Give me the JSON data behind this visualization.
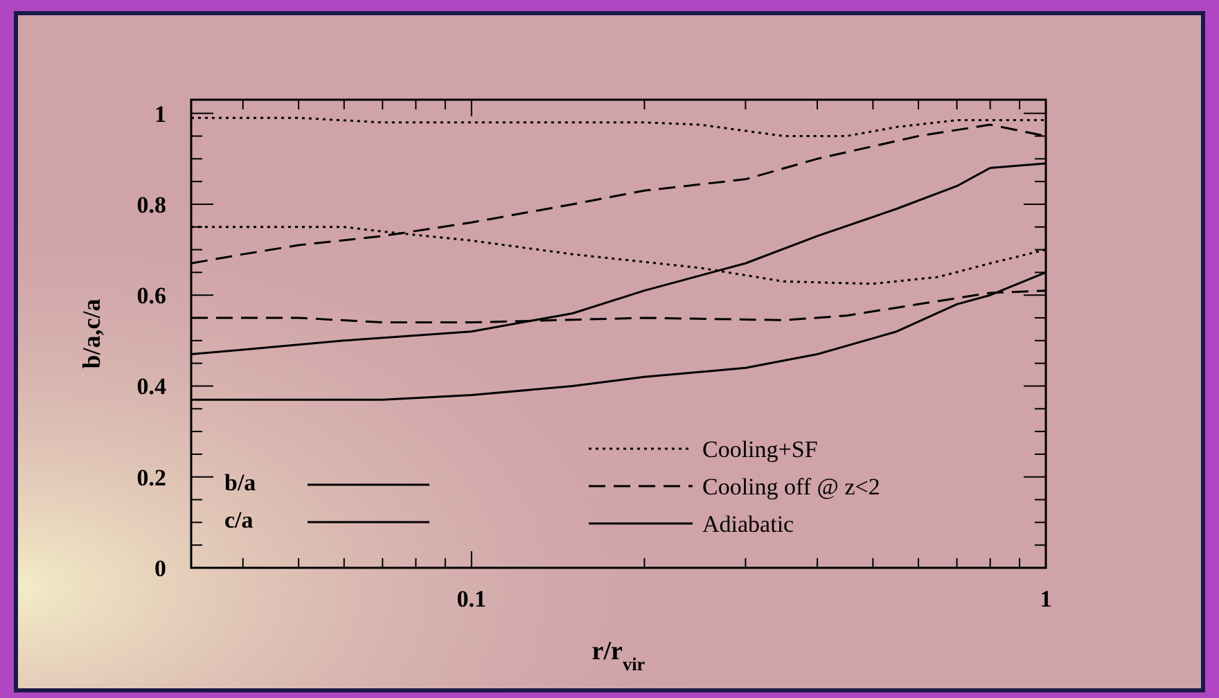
{
  "chart_data": {
    "type": "line",
    "xlabel": "r/r$_{vir}$",
    "ylabel": "b/a,c/a",
    "log": "x",
    "xlim": [
      0.0325,
      1
    ],
    "ylim": [
      0,
      1.03
    ],
    "xticks": [
      {
        "value": 0.04,
        "label": null
      },
      {
        "value": 0.05,
        "label": null
      },
      {
        "value": 0.06,
        "label": null
      },
      {
        "value": 0.07,
        "label": null
      },
      {
        "value": 0.08,
        "label": null
      },
      {
        "value": 0.09,
        "label": null
      },
      0.1,
      {
        "value": 0.2,
        "label": null
      },
      {
        "value": 0.3,
        "label": null
      },
      {
        "value": 0.4,
        "label": null
      },
      {
        "value": 0.5,
        "label": null
      },
      {
        "value": 0.6,
        "label": null
      },
      {
        "value": 0.7,
        "label": null
      },
      {
        "value": 0.8,
        "label": null
      },
      {
        "value": 0.9,
        "label": null
      },
      1
    ],
    "yticks": [
      0,
      {
        "value": 0.05,
        "label": null
      },
      {
        "value": 0.1,
        "label": null
      },
      {
        "value": 0.15,
        "label": null
      },
      0.2,
      {
        "value": 0.25,
        "label": null
      },
      {
        "value": 0.3,
        "label": null
      },
      {
        "value": 0.35,
        "label": null
      },
      0.4,
      {
        "value": 0.45,
        "label": null
      },
      {
        "value": 0.5,
        "label": null
      },
      {
        "value": 0.55,
        "label": null
      },
      0.6,
      {
        "value": 0.65,
        "label": null
      },
      {
        "value": 0.7,
        "label": null
      },
      {
        "value": 0.75,
        "label": null
      },
      0.8,
      {
        "value": 0.85,
        "label": null
      },
      {
        "value": 0.9,
        "label": null
      },
      {
        "value": 0.95,
        "label": null
      },
      1
    ],
    "legend": "bottom right",
    "annotations": [
      "b/a",
      "c/a"
    ],
    "series": [
      {
        "name": "Cooling+SF",
        "color": "#000000",
        "line_style": "dotted",
        "x": [
          0.0325,
          0.05,
          0.07,
          0.1,
          0.2,
          0.25,
          0.35,
          0.45,
          0.55,
          0.7,
          1
        ],
        "values": [
          0.99,
          0.99,
          0.98,
          0.98,
          0.98,
          0.975,
          0.95,
          0.95,
          0.97,
          0.985,
          0.985
        ]
      },
      {
        "color": "#000000",
        "line_style": "dotted",
        "x": [
          0.0325,
          0.06,
          0.07,
          0.1,
          0.15,
          0.25,
          0.35,
          0.5,
          0.65,
          0.8,
          1
        ],
        "values": [
          0.75,
          0.75,
          0.74,
          0.72,
          0.69,
          0.66,
          0.63,
          0.625,
          0.64,
          0.67,
          0.7
        ]
      },
      {
        "name": "Cooling off @ z<2",
        "color": "#000000",
        "line_style": "dashed",
        "x": [
          0.0325,
          0.04,
          0.05,
          0.07,
          0.1,
          0.15,
          0.2,
          0.3,
          0.4,
          0.6,
          0.8,
          1
        ],
        "values": [
          0.67,
          0.69,
          0.71,
          0.73,
          0.76,
          0.8,
          0.83,
          0.855,
          0.9,
          0.95,
          0.975,
          0.95
        ]
      },
      {
        "color": "#000000",
        "line_style": "dashed",
        "x": [
          0.0325,
          0.05,
          0.07,
          0.1,
          0.2,
          0.35,
          0.45,
          0.6,
          0.8,
          1
        ],
        "values": [
          0.55,
          0.55,
          0.54,
          0.54,
          0.55,
          0.545,
          0.555,
          0.58,
          0.605,
          0.61
        ]
      },
      {
        "name": "Adiabatic",
        "color": "#000000",
        "line_style": "solid",
        "x": [
          0.0325,
          0.04,
          0.06,
          0.1,
          0.15,
          0.2,
          0.3,
          0.4,
          0.55,
          0.7,
          0.8,
          1
        ],
        "values": [
          0.47,
          0.48,
          0.5,
          0.52,
          0.56,
          0.61,
          0.67,
          0.73,
          0.79,
          0.84,
          0.88,
          0.89
        ]
      },
      {
        "color": "#000000",
        "line_style": "solid",
        "x": [
          0.0325,
          0.07,
          0.1,
          0.15,
          0.2,
          0.3,
          0.4,
          0.55,
          0.7,
          0.8,
          1
        ],
        "values": [
          0.37,
          0.37,
          0.38,
          0.4,
          0.42,
          0.44,
          0.47,
          0.52,
          0.58,
          0.6,
          0.65
        ]
      }
    ]
  }
}
